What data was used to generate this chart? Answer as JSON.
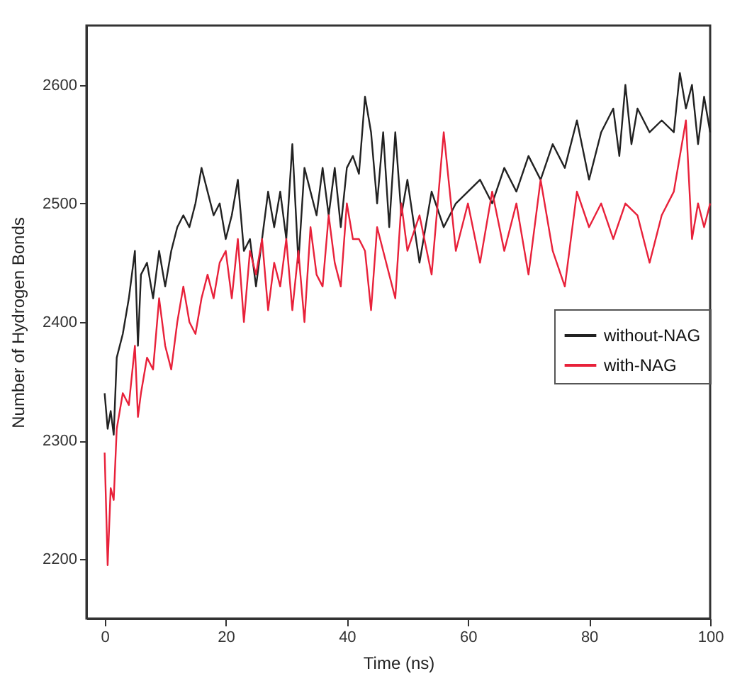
{
  "chart_data": {
    "type": "line",
    "xlabel": "Time (ns)",
    "ylabel": "Number of Hydrogen Bonds",
    "xlim": [
      -3,
      100
    ],
    "xticks": [
      0,
      20,
      40,
      60,
      80,
      100
    ],
    "ylim": [
      2150,
      2650
    ],
    "yticks": [
      2200,
      2300,
      2400,
      2500,
      2600
    ],
    "legend": "right",
    "grid": false,
    "marker": "none",
    "line_style": "solid",
    "series": [
      {
        "name": "without-NAG",
        "color": "#222222",
        "x": [
          0,
          0.5,
          1,
          1.5,
          2,
          3,
          4,
          5,
          5.5,
          6,
          7,
          8,
          9,
          10,
          11,
          12,
          13,
          14,
          15,
          16,
          17,
          18,
          19,
          20,
          21,
          22,
          23,
          24,
          25,
          26,
          27,
          28,
          29,
          30,
          31,
          32,
          33,
          34,
          35,
          36,
          37,
          38,
          39,
          40,
          41,
          42,
          43,
          44,
          45,
          46,
          47,
          48,
          49,
          50,
          52,
          54,
          56,
          58,
          60,
          62,
          64,
          66,
          68,
          70,
          72,
          74,
          76,
          78,
          80,
          82,
          84,
          85,
          86,
          87,
          88,
          90,
          92,
          94,
          95,
          96,
          97,
          98,
          99,
          100
        ],
        "values": [
          2340,
          2310,
          2325,
          2305,
          2370,
          2390,
          2420,
          2460,
          2380,
          2440,
          2450,
          2420,
          2460,
          2430,
          2460,
          2480,
          2490,
          2480,
          2500,
          2530,
          2510,
          2490,
          2500,
          2470,
          2490,
          2520,
          2460,
          2470,
          2430,
          2470,
          2510,
          2480,
          2510,
          2470,
          2550,
          2450,
          2530,
          2510,
          2490,
          2530,
          2490,
          2530,
          2480,
          2530,
          2540,
          2525,
          2590,
          2560,
          2500,
          2560,
          2480,
          2560,
          2490,
          2520,
          2450,
          2510,
          2480,
          2500,
          2510,
          2520,
          2500,
          2530,
          2510,
          2540,
          2520,
          2550,
          2530,
          2570,
          2520,
          2560,
          2580,
          2540,
          2600,
          2550,
          2580,
          2560,
          2570,
          2560,
          2610,
          2580,
          2600,
          2550,
          2590,
          2560
        ]
      },
      {
        "name": "with-NAG",
        "color": "#e8213a",
        "x": [
          0,
          0.5,
          1,
          1.5,
          2,
          3,
          4,
          5,
          5.5,
          6,
          7,
          8,
          9,
          10,
          11,
          12,
          13,
          14,
          15,
          16,
          17,
          18,
          19,
          20,
          21,
          22,
          23,
          24,
          25,
          26,
          27,
          28,
          29,
          30,
          31,
          32,
          33,
          34,
          35,
          36,
          37,
          38,
          39,
          40,
          41,
          42,
          43,
          44,
          45,
          46,
          47,
          48,
          49,
          50,
          52,
          54,
          56,
          58,
          60,
          62,
          64,
          66,
          68,
          70,
          72,
          74,
          76,
          78,
          80,
          82,
          84,
          86,
          88,
          90,
          92,
          94,
          95,
          96,
          97,
          98,
          99,
          100
        ],
        "values": [
          2290,
          2195,
          2260,
          2250,
          2310,
          2340,
          2330,
          2380,
          2320,
          2340,
          2370,
          2360,
          2420,
          2380,
          2360,
          2400,
          2430,
          2400,
          2390,
          2420,
          2440,
          2420,
          2450,
          2460,
          2420,
          2470,
          2400,
          2460,
          2440,
          2470,
          2410,
          2450,
          2430,
          2470,
          2410,
          2460,
          2400,
          2480,
          2440,
          2430,
          2490,
          2450,
          2430,
          2500,
          2470,
          2470,
          2460,
          2410,
          2480,
          2460,
          2440,
          2420,
          2500,
          2460,
          2490,
          2440,
          2560,
          2460,
          2500,
          2450,
          2510,
          2460,
          2500,
          2440,
          2520,
          2460,
          2430,
          2510,
          2480,
          2500,
          2470,
          2500,
          2490,
          2450,
          2490,
          2510,
          2540,
          2570,
          2470,
          2500,
          2480,
          2500
        ]
      }
    ]
  }
}
